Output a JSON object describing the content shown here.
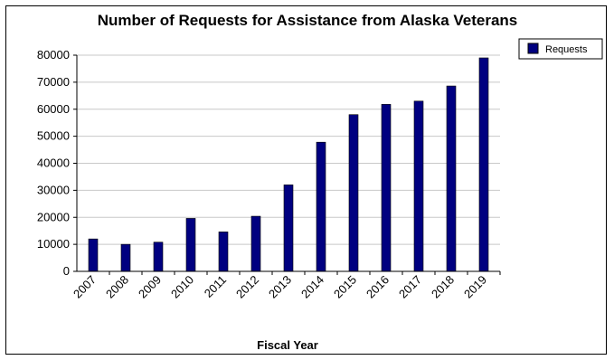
{
  "chart_data": {
    "type": "bar",
    "title": "Number of Requests for Assistance from Alaska Veterans",
    "xlabel": "Fiscal Year",
    "ylabel": "",
    "categories": [
      "2007",
      "2008",
      "2009",
      "2010",
      "2011",
      "2012",
      "2013",
      "2014",
      "2015",
      "2016",
      "2017",
      "2018",
      "2019"
    ],
    "series": [
      {
        "name": "Requests",
        "color": "#000080",
        "values": [
          12000,
          10000,
          10800,
          19600,
          14600,
          20400,
          32000,
          47800,
          58000,
          61800,
          63000,
          68600,
          79000
        ]
      }
    ],
    "ylim": [
      0,
      80000
    ],
    "yticks": [
      0,
      10000,
      20000,
      30000,
      40000,
      50000,
      60000,
      70000,
      80000
    ],
    "grid": true,
    "legend": "top-right"
  }
}
